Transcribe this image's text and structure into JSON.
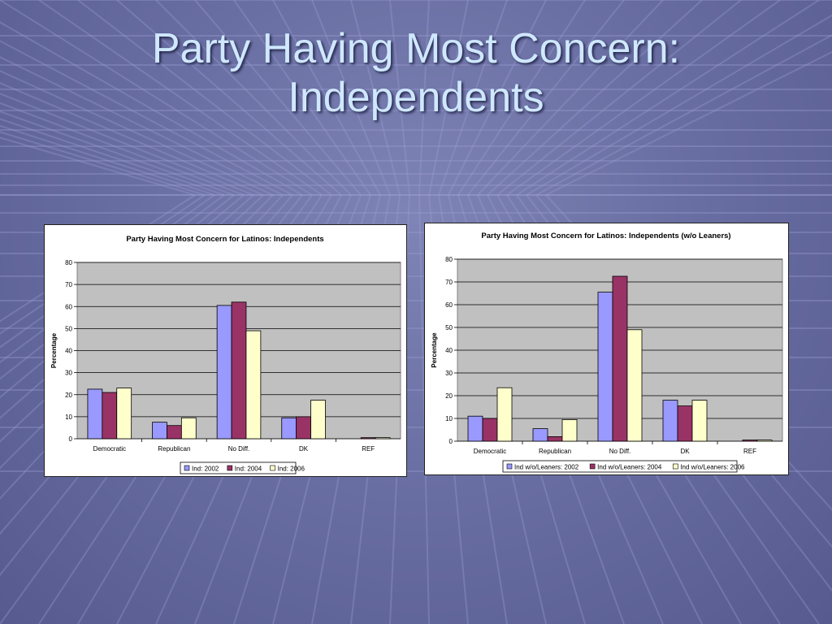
{
  "slide": {
    "title_line1": "Party Having Most Concern:",
    "title_line2": "Independents"
  },
  "colors": {
    "series_2002": "#9999ff",
    "series_2004": "#993366",
    "series_2006": "#ffffcc",
    "plot_bg": "#c0c0c0"
  },
  "chart_data": [
    {
      "type": "bar",
      "title": "Party Having Most Concern for Latinos: Independents",
      "ylabel": "Percentage",
      "xlabel": "",
      "ylim": [
        0,
        80
      ],
      "yticks": [
        0,
        10,
        20,
        30,
        40,
        50,
        60,
        70,
        80
      ],
      "grid": true,
      "legend": "bottom",
      "categories": [
        "Democratic",
        "Republican",
        "No Diff.",
        "DK",
        "REF"
      ],
      "series": [
        {
          "name": "Ind: 2002",
          "values": [
            22.5,
            7.5,
            60.5,
            9.5,
            0
          ]
        },
        {
          "name": "Ind: 2004",
          "values": [
            21,
            6,
            62,
            10,
            0.5
          ]
        },
        {
          "name": "Ind: 2006",
          "values": [
            23,
            9.5,
            49,
            17.5,
            0.5
          ]
        }
      ]
    },
    {
      "type": "bar",
      "title": "Party Having Most Concern for Latinos: Independents (w/o Leaners)",
      "ylabel": "Percentage",
      "xlabel": "",
      "ylim": [
        0,
        80
      ],
      "yticks": [
        0,
        10,
        20,
        30,
        40,
        50,
        60,
        70,
        80
      ],
      "grid": true,
      "legend": "bottom",
      "categories": [
        "Democratic",
        "Republican",
        "No Diff.",
        "DK",
        "REF"
      ],
      "series": [
        {
          "name": "Ind w/o/Leaners: 2002",
          "values": [
            11,
            5.5,
            65.5,
            18,
            0
          ]
        },
        {
          "name": "Ind w/o/Leaners: 2004",
          "values": [
            10,
            2,
            72.5,
            15.5,
            0.5
          ]
        },
        {
          "name": "Ind w/o/Leaners: 2006",
          "values": [
            23.5,
            9.5,
            49,
            18,
            0.5
          ]
        }
      ]
    }
  ]
}
